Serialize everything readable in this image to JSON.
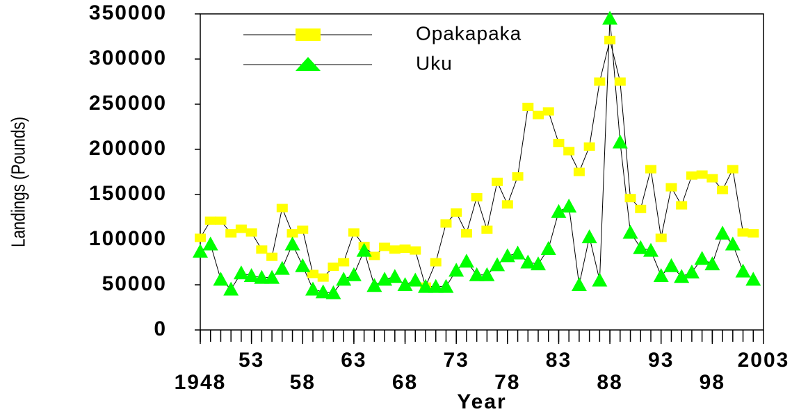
{
  "chart_data": {
    "type": "line",
    "xlabel": "Year",
    "ylabel": "Landings (Pounds)",
    "x": [
      1948,
      1949,
      1950,
      1951,
      1952,
      1953,
      1954,
      1955,
      1956,
      1957,
      1958,
      1959,
      1960,
      1961,
      1962,
      1963,
      1964,
      1965,
      1966,
      1967,
      1968,
      1969,
      1970,
      1971,
      1972,
      1973,
      1974,
      1975,
      1976,
      1977,
      1978,
      1979,
      1980,
      1981,
      1982,
      1983,
      1984,
      1985,
      1986,
      1987,
      1988,
      1989,
      1990,
      1991,
      1992,
      1993,
      1994,
      1995,
      1996,
      1997,
      1998,
      1999,
      2000,
      2001,
      2002
    ],
    "series": [
      {
        "name": "Opakapaka",
        "color": "#ffff00",
        "marker": "square",
        "values": [
          102000,
          121000,
          121000,
          107000,
          112000,
          108000,
          89000,
          81000,
          135000,
          107000,
          111000,
          62000,
          58000,
          70000,
          75000,
          108000,
          93000,
          82000,
          92000,
          89000,
          90000,
          88000,
          48000,
          75000,
          118000,
          130000,
          107000,
          147000,
          111000,
          164000,
          139000,
          170000,
          247000,
          238000,
          242000,
          207000,
          198000,
          175000,
          203000,
          275000,
          321000,
          275000,
          146000,
          134000,
          178000,
          102000,
          158000,
          138000,
          171000,
          172000,
          168000,
          155000,
          178000,
          108000,
          107000
        ]
      },
      {
        "name": "Uku",
        "color": "#00ff00",
        "marker": "triangle",
        "values": [
          87000,
          95000,
          56000,
          45000,
          63000,
          60000,
          58000,
          58000,
          68000,
          95000,
          71000,
          45000,
          42000,
          41000,
          56000,
          61000,
          88000,
          49000,
          56000,
          59000,
          50000,
          55000,
          48000,
          48000,
          48000,
          66000,
          76000,
          61000,
          61000,
          72000,
          82000,
          85000,
          75000,
          73000,
          90000,
          131000,
          137000,
          50000,
          103000,
          55000,
          345000,
          208000,
          108000,
          91000,
          88000,
          60000,
          71000,
          59000,
          64000,
          79000,
          73000,
          107000,
          95000,
          65000,
          56000
        ]
      }
    ],
    "xlim": [
      1948,
      2003
    ],
    "xticks": [
      1948,
      {
        "value": 1953,
        "label": "53"
      },
      {
        "value": 1958,
        "label": "58"
      },
      {
        "value": 1963,
        "label": "63"
      },
      {
        "value": 1968,
        "label": "68"
      },
      {
        "value": 1973,
        "label": "73"
      },
      {
        "value": 1978,
        "label": "78"
      },
      {
        "value": 1983,
        "label": "83"
      },
      {
        "value": 1988,
        "label": "88"
      },
      {
        "value": 1993,
        "label": "93"
      },
      {
        "value": 1998,
        "label": "98"
      },
      2003
    ],
    "ylim": [
      0,
      350000
    ],
    "yticks": [
      0,
      50000,
      100000,
      150000,
      200000,
      250000,
      300000,
      350000
    ],
    "legend": "top-left"
  }
}
